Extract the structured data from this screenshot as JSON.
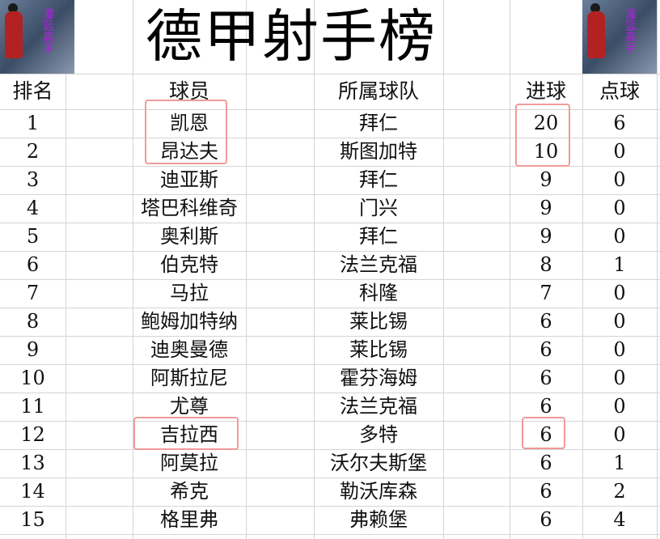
{
  "title": "德甲射手榜",
  "logo_text": "灌篮高手",
  "headers": {
    "rank": "排名",
    "player": "球员",
    "team": "所属球队",
    "goals": "进球",
    "penalties": "点球"
  },
  "rows": [
    {
      "rank": "1",
      "player": "凯恩",
      "team": "拜仁",
      "goals": "20",
      "penalties": "6"
    },
    {
      "rank": "2",
      "player": "昂达夫",
      "team": "斯图加特",
      "goals": "10",
      "penalties": "0"
    },
    {
      "rank": "3",
      "player": "迪亚斯",
      "team": "拜仁",
      "goals": "9",
      "penalties": "0"
    },
    {
      "rank": "4",
      "player": "塔巴科维奇",
      "team": "门兴",
      "goals": "9",
      "penalties": "0"
    },
    {
      "rank": "5",
      "player": "奥利斯",
      "team": "拜仁",
      "goals": "9",
      "penalties": "0"
    },
    {
      "rank": "6",
      "player": "伯克特",
      "team": "法兰克福",
      "goals": "8",
      "penalties": "1"
    },
    {
      "rank": "7",
      "player": "马拉",
      "team": "科隆",
      "goals": "7",
      "penalties": "0"
    },
    {
      "rank": "8",
      "player": "鲍姆加特纳",
      "team": "莱比锡",
      "goals": "6",
      "penalties": "0"
    },
    {
      "rank": "9",
      "player": "迪奥曼德",
      "team": "莱比锡",
      "goals": "6",
      "penalties": "0"
    },
    {
      "rank": "10",
      "player": "阿斯拉尼",
      "team": "霍芬海姆",
      "goals": "6",
      "penalties": "0"
    },
    {
      "rank": "11",
      "player": "尤尊",
      "team": "法兰克福",
      "goals": "6",
      "penalties": "0"
    },
    {
      "rank": "12",
      "player": "吉拉西",
      "team": "多特",
      "goals": "6",
      "penalties": "0"
    },
    {
      "rank": "13",
      "player": "阿莫拉",
      "team": "沃尔夫斯堡",
      "goals": "6",
      "penalties": "1"
    },
    {
      "rank": "14",
      "player": "希克",
      "team": "勒沃库森",
      "goals": "6",
      "penalties": "2"
    },
    {
      "rank": "15",
      "player": "格里弗",
      "team": "弗赖堡",
      "goals": "6",
      "penalties": "4"
    }
  ],
  "highlight_color": "#f19a9a"
}
